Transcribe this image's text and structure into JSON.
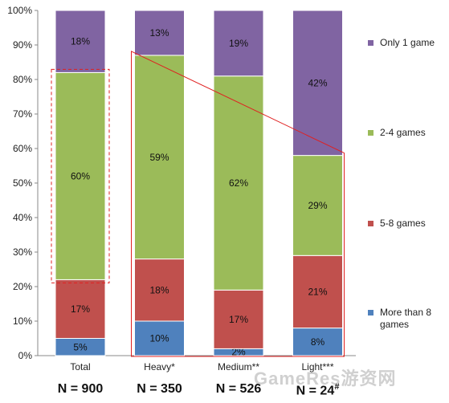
{
  "chart_data": {
    "type": "bar",
    "stacked": true,
    "categories": [
      "Total",
      "Heavy*",
      "Medium**",
      "Light***"
    ],
    "category_n": [
      "N = 900",
      "N = 350",
      "N = 526",
      "N = 24"
    ],
    "category_n_sup": [
      "",
      "",
      "",
      "#"
    ],
    "ylim": [
      0,
      100
    ],
    "yticks": [
      "0%",
      "10%",
      "20%",
      "30%",
      "40%",
      "50%",
      "60%",
      "70%",
      "80%",
      "90%",
      "100%"
    ],
    "series": [
      {
        "name": "More than 8 games",
        "color": "#4f81bd",
        "values": [
          5,
          10,
          2,
          8
        ],
        "labels": [
          "5%",
          "10%",
          "2%",
          "8%"
        ]
      },
      {
        "name": "5-8 games",
        "color": "#c0504d",
        "values": [
          17,
          18,
          17,
          21
        ],
        "labels": [
          "17%",
          "18%",
          "17%",
          "21%"
        ]
      },
      {
        "name": "2-4 games",
        "color": "#9bbb59",
        "values": [
          60,
          59,
          62,
          29
        ],
        "labels": [
          "60%",
          "59%",
          "62%",
          "29%"
        ]
      },
      {
        "name": "Only 1 game",
        "color": "#8064a2",
        "values": [
          18,
          13,
          19,
          42
        ],
        "labels": [
          "18%",
          "13%",
          "19%",
          "42%"
        ]
      }
    ],
    "legend_position": "right",
    "grid": false,
    "annotations": [
      "dashed red box around Total 2-4 games segment",
      "red outline linking Heavy, Medium and Light bars"
    ]
  },
  "watermark": "GameRes游资网"
}
